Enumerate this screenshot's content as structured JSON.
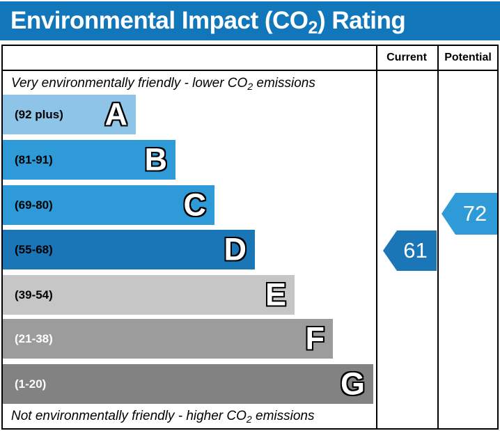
{
  "title": {
    "prefix": "Environmental Impact (CO",
    "subscript": "2",
    "suffix": ") Rating"
  },
  "header": {
    "current_label": "Current",
    "potential_label": "Potential"
  },
  "notes": {
    "top": {
      "prefix": "Very environmentally friendly - lower CO",
      "subscript": "2",
      "suffix": " emissions"
    },
    "bottom": {
      "prefix": "Not environmentally friendly - higher CO",
      "subscript": "2",
      "suffix": " emissions"
    }
  },
  "chart_data": {
    "type": "bar",
    "title": "Environmental Impact (CO2) Rating",
    "bands": [
      {
        "letter": "A",
        "range_label": "(92 plus)",
        "range_min": 92,
        "range_max": 100,
        "color": "#8dc4e8"
      },
      {
        "letter": "B",
        "range_label": "(81-91)",
        "range_min": 81,
        "range_max": 91,
        "color": "#2e9ad7"
      },
      {
        "letter": "C",
        "range_label": "(69-80)",
        "range_min": 69,
        "range_max": 80,
        "color": "#2e9ad7"
      },
      {
        "letter": "D",
        "range_label": "(55-68)",
        "range_min": 55,
        "range_max": 68,
        "color": "#1b76b8"
      },
      {
        "letter": "E",
        "range_label": "(39-54)",
        "range_min": 39,
        "range_max": 54,
        "color": "#c6c6c6"
      },
      {
        "letter": "F",
        "range_label": "(21-38)",
        "range_min": 21,
        "range_max": 38,
        "color": "#9c9c9c"
      },
      {
        "letter": "G",
        "range_label": "(1-20)",
        "range_min": 1,
        "range_max": 20,
        "color": "#828282"
      }
    ],
    "markers": {
      "current": {
        "value": "61",
        "band": "D",
        "color": "#1b76b8"
      },
      "potential": {
        "value": "72",
        "band": "C",
        "color": "#2e9ad7"
      }
    },
    "legend_position": "none",
    "grid": false
  },
  "colors": {
    "title_bar": "#1276bb",
    "border": "#000000"
  }
}
